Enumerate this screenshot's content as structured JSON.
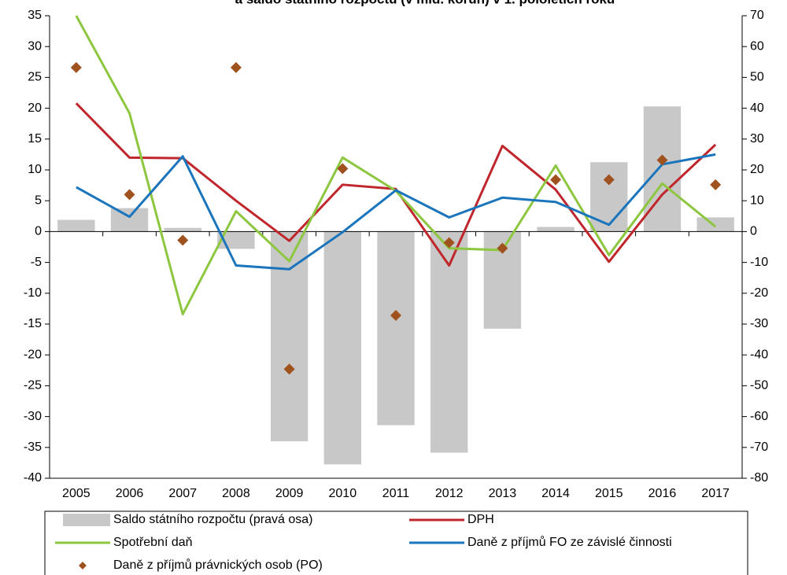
{
  "chart_data": {
    "type": "combo",
    "title": "a saldo státního rozpočtu (v mld. korun) v 1. pololetích roku",
    "categories": [
      "2005",
      "2006",
      "2007",
      "2008",
      "2009",
      "2010",
      "2011",
      "2012",
      "2013",
      "2014",
      "2015",
      "2016",
      "2017"
    ],
    "series": [
      {
        "name": "Saldo státního rozpočtu (pravá osa)",
        "type": "bar",
        "axis": "y2",
        "color": "#c8c8c8",
        "values": [
          3.8,
          7.6,
          1.2,
          -5.6,
          -68,
          -75.5,
          -62.8,
          -71.7,
          -31.5,
          1.5,
          22.5,
          40.6,
          4.6
        ]
      },
      {
        "name": "DPH",
        "type": "line",
        "color": "#c0272d",
        "values": [
          20.8,
          12.0,
          11.9,
          5,
          -1.5,
          7.6,
          6.9,
          -5.5,
          13.9,
          6.8,
          -4.9,
          6,
          14.1
        ]
      },
      {
        "name": "Spotřební daň",
        "type": "line",
        "color": "#8dc63f",
        "values": [
          35,
          19.2,
          -13.4,
          3.3,
          -4.8,
          12,
          6.6,
          -2.7,
          -3,
          10.7,
          -3.8,
          7.8,
          0.8
        ]
      },
      {
        "name": "Daně z příjmů FO ze závislé činnosti",
        "type": "line",
        "color": "#1a75bc",
        "values": [
          7.2,
          2.4,
          12.2,
          -5.5,
          -6.1,
          -0.1,
          6.7,
          2.3,
          5.5,
          4.8,
          1.1,
          10.9,
          12.5
        ]
      },
      {
        "name": "Daně z příjmů právnických osob (PO)",
        "type": "scatter",
        "color": "#a0521e",
        "values": [
          26.6,
          6,
          -1.4,
          26.6,
          -22.3,
          10.2,
          -13.6,
          -1.8,
          -2.7,
          8.4,
          8.4,
          11.6,
          7.6
        ]
      }
    ],
    "ylim": [
      -40,
      35
    ],
    "yticks": [
      -40,
      -35,
      -30,
      -25,
      -20,
      -15,
      -10,
      -5,
      0,
      5,
      10,
      15,
      20,
      25,
      30,
      35
    ],
    "y2lim": [
      -80,
      70
    ],
    "y2ticks": [
      -80,
      -70,
      -60,
      -50,
      -40,
      -30,
      -20,
      -10,
      0,
      10,
      20,
      30,
      40,
      50,
      60,
      70
    ],
    "grid": false
  }
}
